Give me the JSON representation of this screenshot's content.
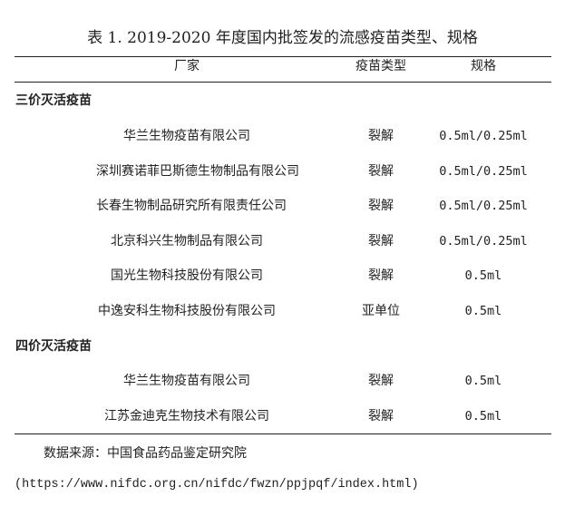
{
  "title": "表 1. 2019-2020 年度国内批签发的流感疫苗类型、规格",
  "headers": {
    "manufacturer": "厂家",
    "type": "疫苗类型",
    "spec": "规格"
  },
  "sections": [
    {
      "label": "三价灭活疫苗",
      "rows": [
        {
          "manufacturer": "华兰生物疫苗有限公司",
          "type": "裂解",
          "spec": "0.5ml/0.25ml"
        },
        {
          "manufacturer": "深圳赛诺菲巴斯德生物制品有限公司",
          "type": "裂解",
          "spec": "0.5ml/0.25ml"
        },
        {
          "manufacturer": "长春生物制品研究所有限责任公司",
          "type": "裂解",
          "spec": "0.5ml/0.25ml"
        },
        {
          "manufacturer": "北京科兴生物制品有限公司",
          "type": "裂解",
          "spec": "0.5ml/0.25ml"
        },
        {
          "manufacturer": "国光生物科技股份有限公司",
          "type": "裂解",
          "spec": "0.5ml"
        },
        {
          "manufacturer": "中逸安科生物科技股份有限公司",
          "type": "亚单位",
          "spec": "0.5ml"
        }
      ]
    },
    {
      "label": "四价灭活疫苗",
      "rows": [
        {
          "manufacturer": "华兰生物疫苗有限公司",
          "type": "裂解",
          "spec": "0.5ml"
        },
        {
          "manufacturer": "江苏金迪克生物技术有限公司",
          "type": "裂解",
          "spec": "0.5ml"
        }
      ]
    }
  ],
  "source": "数据来源：中国食品药品鉴定研究院",
  "url": "(https://www.nifdc.org.cn/nifdc/fwzn/ppjpqf/index.html)"
}
